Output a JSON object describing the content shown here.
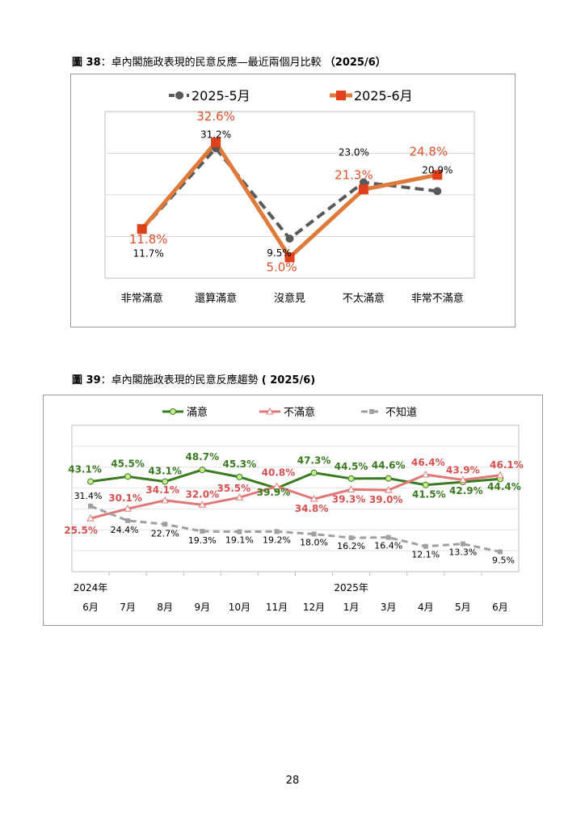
{
  "page_number": "28",
  "figures": [
    {
      "label": "圖 38",
      "sep": "：",
      "title": "卓內閣施政表現的民意反應—最近兩個月比較",
      "date": "（2025/6）"
    },
    {
      "label": "圖 39",
      "sep": "：",
      "title": "卓內閣施政表現的民意反應趨勢",
      "date": "( 2025/6)"
    }
  ],
  "colors": {
    "may": "#595959",
    "june": "#e07a3a",
    "june_label": "#e0502a",
    "satisfied": "#3a7a20",
    "dissatisfied": "#e07878",
    "unknown": "#a0a0a0"
  },
  "chart_data": [
    {
      "type": "line",
      "categories": [
        "非常滿意",
        "還算滿意",
        "沒意見",
        "不太滿意",
        "非常不滿意"
      ],
      "ylim": [
        0,
        40
      ],
      "grid": true,
      "legend": "top",
      "series": [
        {
          "name": "2025-5月",
          "values": [
            11.7,
            31.2,
            9.5,
            23.0,
            20.9
          ],
          "labels": [
            "11.7%",
            "31.2%",
            "9.5%",
            "23.0%",
            "20.9%"
          ]
        },
        {
          "name": "2025-6月",
          "values": [
            11.8,
            32.6,
            5.0,
            21.3,
            24.8
          ],
          "labels": [
            "11.8%",
            "32.6%",
            "5.0%",
            "21.3%",
            "24.8%"
          ]
        }
      ]
    },
    {
      "type": "line",
      "categories": [
        "6月",
        "7月",
        "8月",
        "9月",
        "10月",
        "11月",
        "12月",
        "1月",
        "3月",
        "4月",
        "5月",
        "6月"
      ],
      "year_labels": [
        "2024年",
        "2025年"
      ],
      "ylim": [
        0,
        70
      ],
      "grid": true,
      "legend": "top",
      "series": [
        {
          "name": "滿意",
          "values": [
            43.1,
            45.5,
            43.1,
            48.7,
            45.3,
            39.9,
            47.3,
            44.5,
            44.6,
            41.5,
            42.9,
            44.4
          ],
          "labels": [
            "43.1%",
            "45.5%",
            "43.1%",
            "48.7%",
            "45.3%",
            "39.9%",
            "47.3%",
            "44.5%",
            "44.6%",
            "41.5%",
            "42.9%",
            "44.4%"
          ]
        },
        {
          "name": "不滿意",
          "values": [
            25.5,
            30.1,
            34.1,
            32.0,
            35.5,
            40.8,
            34.8,
            39.3,
            39.0,
            46.4,
            43.9,
            46.1
          ],
          "labels": [
            "25.5%",
            "30.1%",
            "34.1%",
            "32.0%",
            "35.5%",
            "40.8%",
            "34.8%",
            "39.3%",
            "39.0%",
            "46.4%",
            "43.9%",
            "46.1%"
          ]
        },
        {
          "name": "不知道",
          "values": [
            31.4,
            24.4,
            22.7,
            19.3,
            19.1,
            19.2,
            18.0,
            16.2,
            16.4,
            12.1,
            13.3,
            9.5
          ],
          "labels": [
            "31.4%",
            "24.4%",
            "22.7%",
            "19.3%",
            "19.1%",
            "19.2%",
            "18.0%",
            "16.2%",
            "16.4%",
            "12.1%",
            "13.3%",
            "9.5%"
          ]
        }
      ]
    }
  ]
}
